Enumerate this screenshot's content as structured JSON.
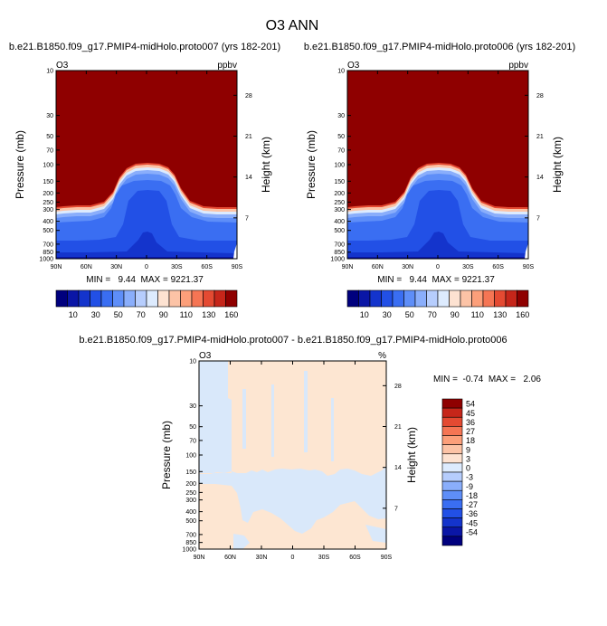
{
  "page": {
    "title": "O3 ANN"
  },
  "chart_data": [
    {
      "type": "heatmap",
      "id": "left",
      "title": "b.e21.B1850.f09_g17.PMIP4-midHolo.proto007 (yrs 182-201)",
      "corner_left": "O3",
      "corner_right": "ppbv",
      "ylabel": "Pressure (mb)",
      "ylabel_right": "Height (km)",
      "xticks": [
        "90N",
        "60N",
        "30N",
        "0",
        "30S",
        "60S",
        "90S"
      ],
      "yticks": [
        "10",
        "30",
        "50",
        "70",
        "100",
        "150",
        "200",
        "250",
        "300",
        "400",
        "500",
        "700",
        "850",
        "1000"
      ],
      "height_ticks": [
        "28",
        "21",
        "14",
        "7"
      ],
      "stats": "MIN =   9.44  MAX = 9221.37",
      "colorbar_labels": [
        "10",
        "30",
        "50",
        "70",
        "90",
        "110",
        "130",
        "160"
      ],
      "colorbar_levels": [
        0,
        10,
        20,
        30,
        40,
        50,
        60,
        70,
        80,
        90,
        100,
        110,
        120,
        130,
        140,
        160
      ]
    },
    {
      "type": "heatmap",
      "id": "right",
      "title": "b.e21.B1850.f09_g17.PMIP4-midHolo.proto006 (yrs 182-201)",
      "corner_left": "O3",
      "corner_right": "ppbv",
      "ylabel": "Pressure (mb)",
      "ylabel_right": "Height (km)",
      "xticks": [
        "90N",
        "60N",
        "30N",
        "0",
        "30S",
        "60S",
        "90S"
      ],
      "yticks": [
        "10",
        "30",
        "50",
        "70",
        "100",
        "150",
        "200",
        "250",
        "300",
        "400",
        "500",
        "700",
        "850",
        "1000"
      ],
      "height_ticks": [
        "28",
        "21",
        "14",
        "7"
      ],
      "stats": "MIN =   9.44  MAX = 9221.37",
      "colorbar_labels": [
        "10",
        "30",
        "50",
        "70",
        "90",
        "110",
        "130",
        "160"
      ],
      "colorbar_levels": [
        0,
        10,
        20,
        30,
        40,
        50,
        60,
        70,
        80,
        90,
        100,
        110,
        120,
        130,
        140,
        160
      ]
    },
    {
      "type": "heatmap",
      "id": "diff",
      "title": "b.e21.B1850.f09_g17.PMIP4-midHolo.proto007 - b.e21.B1850.f09_g17.PMIP4-midHolo.proto006",
      "corner_left": "O3",
      "corner_right": "%",
      "ylabel": "Pressure (mb)",
      "ylabel_right": "Height (km)",
      "xticks": [
        "90N",
        "60N",
        "30N",
        "0",
        "30S",
        "60S",
        "90S"
      ],
      "yticks": [
        "10",
        "30",
        "50",
        "70",
        "100",
        "150",
        "200",
        "250",
        "300",
        "400",
        "500",
        "700",
        "850",
        "1000"
      ],
      "height_ticks": [
        "28",
        "21",
        "14",
        "7"
      ],
      "stats": "MIN =  -0.74  MAX =   2.06",
      "colorbar_labels": [
        "54",
        "45",
        "36",
        "27",
        "18",
        "9",
        "3",
        "0",
        "-3",
        "-9",
        "-18",
        "-27",
        "-36",
        "-45",
        "-54"
      ]
    }
  ],
  "colors": {
    "seq": [
      "#00007e",
      "#0a16a6",
      "#1434cc",
      "#2250e6",
      "#3a6ef2",
      "#5e8ef8",
      "#8aaefb",
      "#b6cdfd",
      "#ddebfe",
      "#fde2d1",
      "#fcc3a6",
      "#fc9f7a",
      "#f57554",
      "#e44a32",
      "#c6261a",
      "#8f0000"
    ],
    "diff": [
      "#8f0000",
      "#c6261a",
      "#e44a32",
      "#f57554",
      "#fc9f7a",
      "#fcc3a6",
      "#fde2d1",
      "#ddebfe",
      "#b6cdfd",
      "#8aaefb",
      "#5e8ef8",
      "#3a6ef2",
      "#2250e6",
      "#1434cc",
      "#0a16a6",
      "#00007e"
    ],
    "diff_neg_fill": "#d9e8fa",
    "diff_pos_fill": "#fde6d2"
  }
}
